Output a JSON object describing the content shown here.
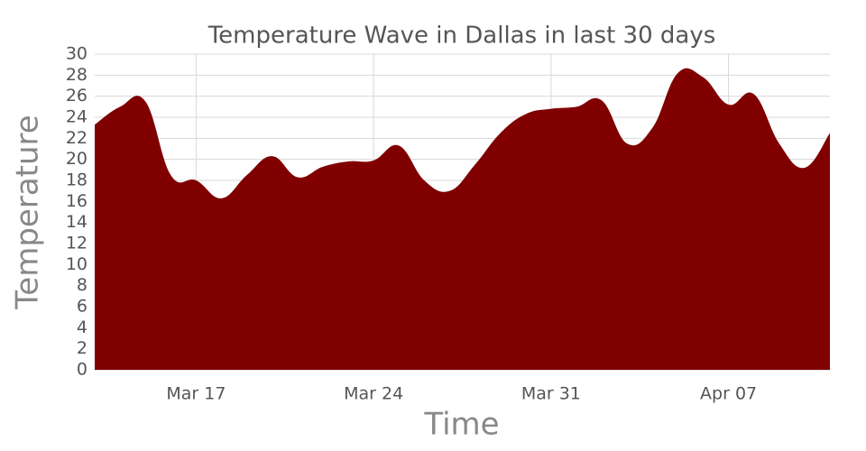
{
  "chart_data": {
    "type": "area",
    "title": "Temperature Wave in Dallas in last 30 days",
    "x_label": "Time",
    "y_label": "Temperature",
    "categories": [
      null,
      null,
      null,
      null,
      "Mar 17",
      null,
      null,
      null,
      null,
      null,
      null,
      "Mar 24",
      null,
      null,
      null,
      null,
      null,
      null,
      "Mar 31",
      null,
      null,
      null,
      null,
      null,
      null,
      "Apr 07",
      null,
      null,
      null,
      null
    ],
    "series": [
      {
        "name": "Temperature",
        "color": "#800000",
        "values": [
          23.3,
          25.0,
          25.5,
          18.5,
          18.0,
          16.3,
          18.5,
          20.3,
          18.3,
          19.3,
          19.8,
          19.9,
          21.3,
          18.0,
          17.0,
          19.5,
          22.5,
          24.3,
          24.8,
          25.0,
          25.6,
          21.5,
          23.0,
          28.2,
          27.8,
          25.2,
          26.2,
          21.5,
          19.2,
          22.5
        ]
      }
    ],
    "ylim": [
      0,
      30
    ],
    "yticks": [
      0,
      2,
      4,
      6,
      8,
      10,
      12,
      14,
      16,
      18,
      20,
      22,
      24,
      26,
      28,
      30
    ],
    "grid": true
  }
}
